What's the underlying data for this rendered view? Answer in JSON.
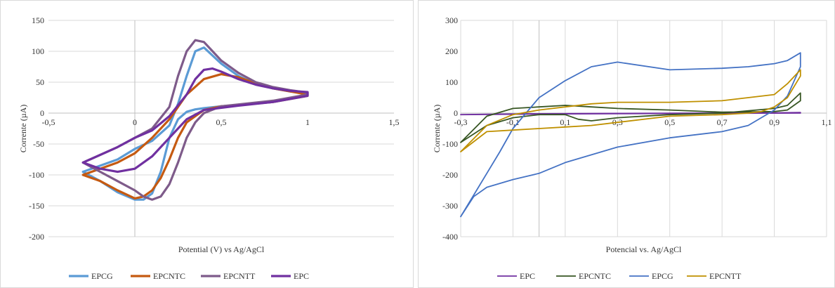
{
  "chart_data": [
    {
      "type": "line",
      "xlabel": "Potential (V)  vs Ag/AgCl",
      "ylabel": "Corrente (µA)",
      "xlim": [
        -0.5,
        1.5
      ],
      "ylim": [
        -200,
        150
      ],
      "xticks": [
        "-0,5",
        "0",
        "0,5",
        "1",
        "1,5"
      ],
      "yticks": [
        "150",
        "100",
        "50",
        "0",
        "-50",
        "-100",
        "-150",
        "-200"
      ],
      "grid": "horizontal",
      "legend_position": "bottom",
      "series": [
        {
          "name": "EPCG",
          "color": "#5B9BD5",
          "x": [
            -0.3,
            -0.1,
            0.0,
            0.1,
            0.2,
            0.25,
            0.3,
            0.35,
            0.4,
            0.5,
            0.6,
            0.7,
            0.8,
            0.9,
            1.0,
            1.0,
            0.8,
            0.6,
            0.5,
            0.4,
            0.35,
            0.3,
            0.25,
            0.2,
            0.15,
            0.1,
            0.05,
            0.0,
            -0.1,
            -0.2,
            -0.3
          ],
          "y": [
            -95,
            -75,
            -58,
            -45,
            -20,
            15,
            60,
            100,
            106,
            80,
            60,
            47,
            40,
            35,
            33,
            28,
            18,
            13,
            11,
            8,
            6,
            2,
            -10,
            -40,
            -95,
            -130,
            -140,
            -140,
            -128,
            -110,
            -95
          ]
        },
        {
          "name": "EPCNTC",
          "color": "#C55A11",
          "x": [
            -0.3,
            -0.1,
            0.0,
            0.1,
            0.2,
            0.3,
            0.4,
            0.5,
            0.6,
            0.7,
            0.8,
            0.9,
            1.0,
            1.0,
            0.8,
            0.6,
            0.5,
            0.4,
            0.3,
            0.25,
            0.2,
            0.15,
            0.1,
            0.05,
            0.0,
            -0.1,
            -0.2,
            -0.3
          ],
          "y": [
            -100,
            -80,
            -65,
            -40,
            -10,
            30,
            55,
            63,
            58,
            48,
            40,
            35,
            30,
            28,
            18,
            13,
            11,
            5,
            -15,
            -40,
            -75,
            -105,
            -125,
            -135,
            -138,
            -125,
            -110,
            -100
          ]
        },
        {
          "name": "EPCNTT",
          "color": "#7E5B8A",
          "x": [
            -0.3,
            -0.1,
            0.0,
            0.1,
            0.2,
            0.25,
            0.3,
            0.35,
            0.4,
            0.45,
            0.5,
            0.6,
            0.7,
            0.8,
            0.9,
            1.0,
            1.0,
            0.8,
            0.6,
            0.5,
            0.4,
            0.35,
            0.3,
            0.25,
            0.2,
            0.15,
            0.1,
            0.05,
            0.0,
            -0.1,
            -0.2,
            -0.3
          ],
          "y": [
            -80,
            -55,
            -40,
            -25,
            10,
            60,
            100,
            118,
            115,
            100,
            85,
            65,
            50,
            42,
            37,
            33,
            30,
            20,
            14,
            11,
            0,
            -15,
            -40,
            -80,
            -115,
            -135,
            -140,
            -135,
            -125,
            -110,
            -95,
            -80
          ]
        },
        {
          "name": "EPC",
          "color": "#7030A0",
          "x": [
            -0.3,
            -0.1,
            0.0,
            0.1,
            0.2,
            0.3,
            0.35,
            0.4,
            0.45,
            0.5,
            0.6,
            0.7,
            0.8,
            0.9,
            1.0,
            1.0,
            0.8,
            0.6,
            0.4,
            0.3,
            0.2,
            0.1,
            0.0,
            -0.1,
            -0.2,
            -0.3
          ],
          "y": [
            -80,
            -55,
            -40,
            -28,
            -5,
            30,
            55,
            70,
            72,
            67,
            55,
            46,
            40,
            36,
            34,
            28,
            18,
            12,
            5,
            -10,
            -40,
            -70,
            -90,
            -95,
            -90,
            -80
          ]
        }
      ]
    },
    {
      "type": "line",
      "xlabel": "Potencial vs. Ag/AgCl",
      "ylabel": "Corrente (µA)",
      "xlim": [
        -0.3,
        1.1
      ],
      "ylim": [
        -400,
        300
      ],
      "xticks": [
        "-0,3",
        "-0,1",
        "0,1",
        "0,3",
        "0,5",
        "0,7",
        "0,9",
        "1,1"
      ],
      "yticks": [
        "300",
        "200",
        "100",
        "0",
        "-100",
        "-200",
        "-300",
        "-400"
      ],
      "grid": "vertical",
      "legend_position": "bottom",
      "series": [
        {
          "name": "EPC",
          "color": "#7030A0",
          "x": [
            -0.3,
            0.0,
            0.3,
            0.6,
            0.9,
            1.0,
            1.0,
            0.6,
            0.3,
            0.0,
            -0.3
          ],
          "y": [
            -5,
            -2,
            -1,
            0,
            1,
            2,
            0,
            -1,
            -2,
            -3,
            -5
          ]
        },
        {
          "name": "EPCNTC",
          "color": "#375623",
          "x": [
            -0.3,
            -0.2,
            -0.1,
            0.0,
            0.1,
            0.15,
            0.2,
            0.3,
            0.5,
            0.7,
            0.9,
            0.95,
            1.0,
            1.0,
            0.95,
            0.9,
            0.7,
            0.5,
            0.3,
            0.2,
            0.1,
            0.0,
            -0.1,
            -0.2,
            -0.3
          ],
          "y": [
            -95,
            -40,
            -15,
            -5,
            -5,
            -20,
            -25,
            -15,
            -5,
            0,
            15,
            25,
            65,
            40,
            10,
            5,
            3,
            10,
            15,
            20,
            25,
            20,
            15,
            -10,
            -95
          ]
        },
        {
          "name": "EPCG",
          "color": "#4472C4",
          "x": [
            -0.3,
            -0.25,
            -0.2,
            -0.15,
            -0.1,
            0.0,
            0.1,
            0.2,
            0.3,
            0.5,
            0.7,
            0.8,
            0.85,
            0.9,
            0.95,
            1.0,
            1.0,
            0.95,
            0.9,
            0.8,
            0.7,
            0.5,
            0.3,
            0.1,
            0.0,
            -0.1,
            -0.2,
            -0.25,
            -0.3
          ],
          "y": [
            -335,
            -265,
            -195,
            -125,
            -50,
            50,
            105,
            150,
            165,
            140,
            145,
            150,
            155,
            160,
            170,
            195,
            150,
            55,
            10,
            -40,
            -60,
            -80,
            -110,
            -160,
            -195,
            -215,
            -240,
            -270,
            -335
          ]
        },
        {
          "name": "EPCNTT",
          "color": "#BF9000",
          "x": [
            -0.3,
            -0.2,
            -0.1,
            0.0,
            0.1,
            0.2,
            0.3,
            0.5,
            0.7,
            0.8,
            0.85,
            0.9,
            0.95,
            1.0,
            1.0,
            0.95,
            0.9,
            0.7,
            0.5,
            0.3,
            0.2,
            0.1,
            0.0,
            -0.1,
            -0.2,
            -0.3
          ],
          "y": [
            -125,
            -60,
            -55,
            -50,
            -45,
            -40,
            -30,
            -10,
            -5,
            0,
            5,
            20,
            50,
            120,
            140,
            95,
            60,
            40,
            35,
            35,
            30,
            20,
            10,
            -5,
            -40,
            -125
          ]
        }
      ]
    }
  ]
}
